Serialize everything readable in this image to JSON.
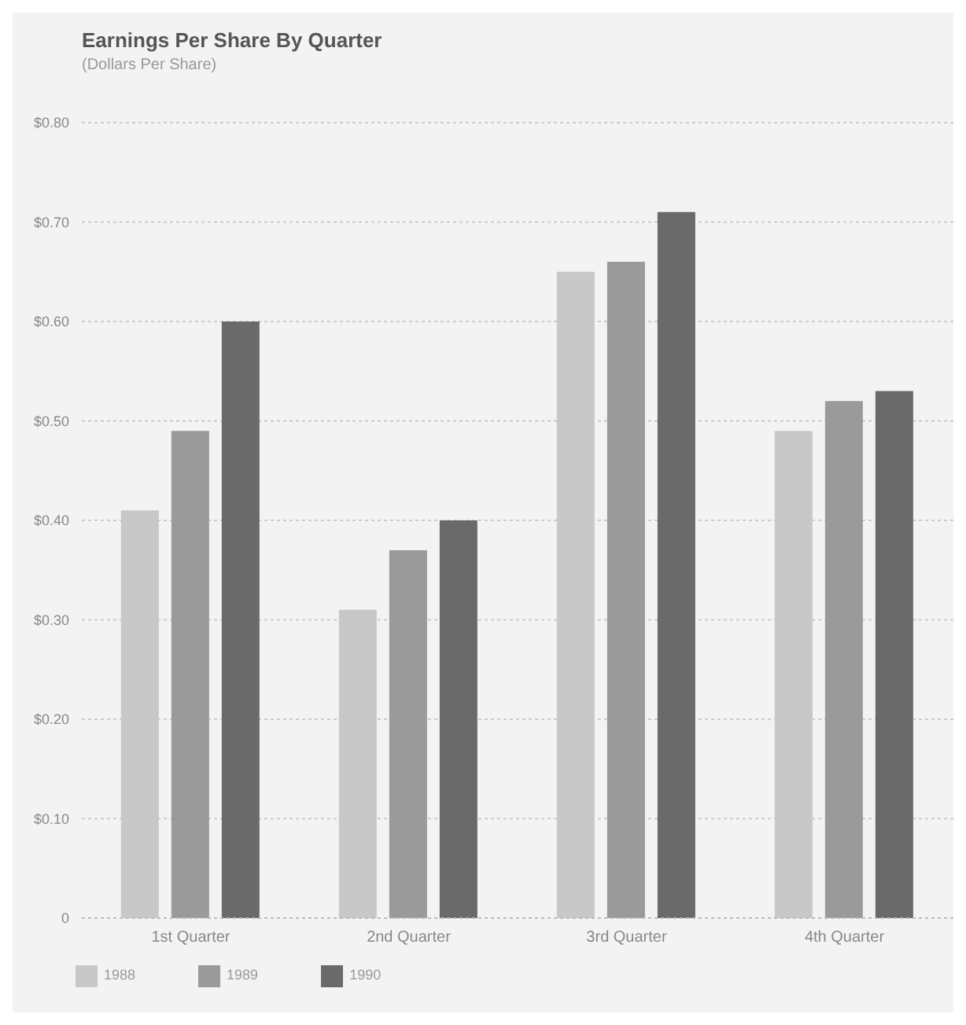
{
  "chart_data": {
    "type": "bar",
    "title": "Earnings Per Share By Quarter",
    "subtitle": "(Dollars Per Share)",
    "categories": [
      "1st Quarter",
      "2nd Quarter",
      "3rd Quarter",
      "4th Quarter"
    ],
    "series": [
      {
        "name": "1988",
        "color": "#c8c8c8",
        "values": [
          0.41,
          0.31,
          0.65,
          0.49
        ]
      },
      {
        "name": "1989",
        "color": "#9a9a9a",
        "values": [
          0.49,
          0.37,
          0.66,
          0.52
        ]
      },
      {
        "name": "1990",
        "color": "#6a6a6a",
        "values": [
          0.6,
          0.4,
          0.71,
          0.53
        ]
      }
    ],
    "ylim": [
      0,
      0.8
    ],
    "yticks": [
      {
        "value": 0,
        "label": "0"
      },
      {
        "value": 0.1,
        "label": "$0.10"
      },
      {
        "value": 0.2,
        "label": "$0.20"
      },
      {
        "value": 0.3,
        "label": "$0.30"
      },
      {
        "value": 0.4,
        "label": "$0.40"
      },
      {
        "value": 0.5,
        "label": "$0.50"
      },
      {
        "value": 0.6,
        "label": "$0.60"
      },
      {
        "value": 0.7,
        "label": "$0.70"
      },
      {
        "value": 0.8,
        "label": "$0.80"
      }
    ],
    "grid": "y",
    "legend": "bottom left"
  }
}
